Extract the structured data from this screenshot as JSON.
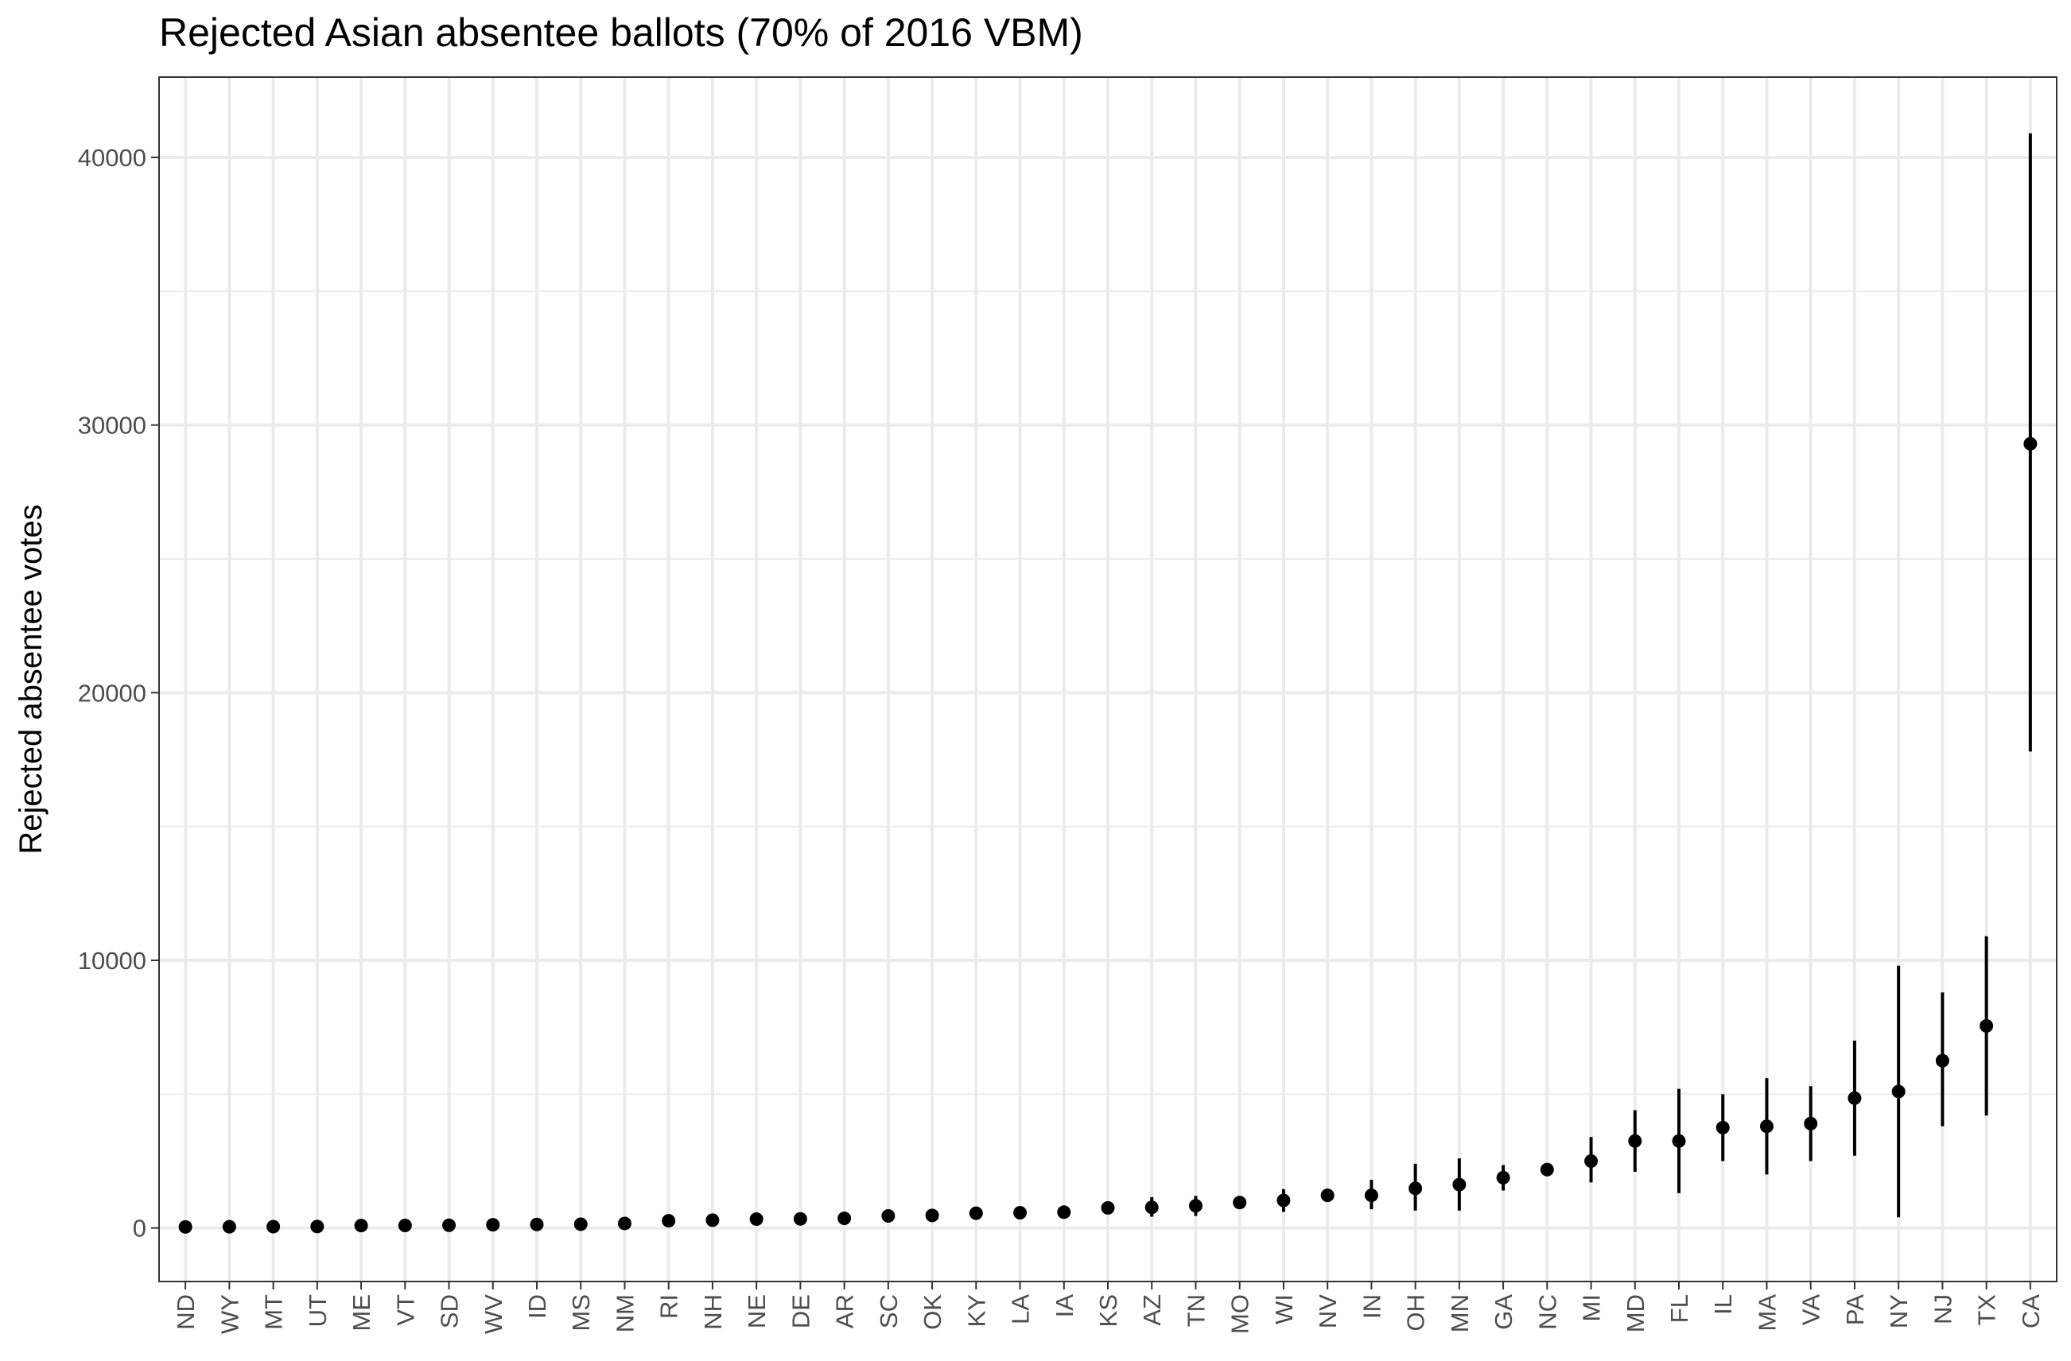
{
  "chart_data": {
    "type": "scatter",
    "title": "Rejected Asian absentee ballots (70% of 2016 VBM)",
    "xlabel": "",
    "ylabel": "Rejected absentee votes",
    "ylim": [
      -2000,
      43000
    ],
    "yticks": [
      0,
      10000,
      20000,
      30000,
      40000
    ],
    "grid": true,
    "legend": "none",
    "categories": [
      "ND",
      "WY",
      "MT",
      "UT",
      "ME",
      "VT",
      "SD",
      "WV",
      "ID",
      "MS",
      "NM",
      "RI",
      "NH",
      "NE",
      "DE",
      "AR",
      "SC",
      "OK",
      "KY",
      "LA",
      "IA",
      "KS",
      "AZ",
      "TN",
      "MO",
      "WI",
      "NV",
      "IN",
      "OH",
      "MN",
      "GA",
      "NC",
      "MI",
      "MD",
      "FL",
      "IL",
      "MA",
      "VA",
      "PA",
      "NY",
      "NJ",
      "TX",
      "CA"
    ],
    "series": [
      {
        "values": [
          40,
          45,
          50,
          55,
          90,
          95,
          100,
          120,
          130,
          140,
          170,
          270,
          290,
          330,
          340,
          360,
          450,
          470,
          550,
          570,
          590,
          750,
          770,
          830,
          950,
          1030,
          1220,
          1220,
          1480,
          1620,
          1880,
          2180,
          2500,
          3250,
          3250,
          3750,
          3800,
          3900,
          4850,
          5100,
          6250,
          7550,
          29300
        ],
        "lower": [
          10,
          15,
          20,
          25,
          50,
          55,
          60,
          80,
          90,
          100,
          120,
          200,
          200,
          250,
          260,
          260,
          360,
          380,
          420,
          430,
          450,
          580,
          420,
          450,
          750,
          600,
          1000,
          700,
          650,
          650,
          1400,
          2000,
          1700,
          2100,
          1300,
          2500,
          2000,
          2500,
          2700,
          400,
          3800,
          4200,
          17800
        ],
        "upper": [
          70,
          75,
          80,
          85,
          130,
          135,
          140,
          160,
          170,
          180,
          220,
          340,
          380,
          410,
          420,
          460,
          540,
          560,
          680,
          710,
          730,
          920,
          1150,
          1200,
          1150,
          1450,
          1440,
          1800,
          2400,
          2600,
          2350,
          2360,
          3400,
          4400,
          5200,
          5000,
          5600,
          5300,
          7000,
          9800,
          8800,
          10900,
          40900
        ]
      }
    ]
  },
  "colors": {
    "point": "#000000",
    "grid": "#ebebeb",
    "border": "#333333"
  }
}
